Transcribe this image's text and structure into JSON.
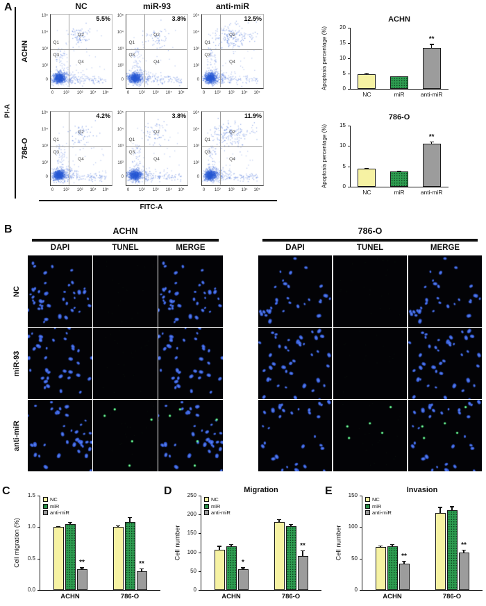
{
  "colors": {
    "nc": "#F6F2A3",
    "mir": "#2E9C50",
    "anti": "#9C9C9C",
    "flow_dot": "#2A5BD7"
  },
  "legend": [
    "NC",
    "miR",
    "anti-miR"
  ],
  "panel_a": {
    "label": "A",
    "col_headers": [
      "NC",
      "miR-93",
      "anti-miR"
    ],
    "row_labels": [
      "ACHN",
      "786-O"
    ],
    "x_axis_label": "FITC-A",
    "y_axis_label": "PI-A",
    "y_ticks": [
      "10⁵",
      "10⁴",
      "10³",
      "10²",
      "0"
    ],
    "x_ticks": [
      "0",
      "10²",
      "10³",
      "10⁴",
      "10⁵"
    ],
    "quadrants": [
      "Q1",
      "Q2",
      "Q3",
      "Q4"
    ],
    "plots": [
      {
        "row": "ACHN",
        "col": "NC",
        "percent": "5.5%"
      },
      {
        "row": "ACHN",
        "col": "miR-93",
        "percent": "3.8%"
      },
      {
        "row": "ACHN",
        "col": "anti-miR",
        "percent": "12.5%"
      },
      {
        "row": "786-O",
        "col": "NC",
        "percent": "4.2%"
      },
      {
        "row": "786-O",
        "col": "miR-93",
        "percent": "3.8%"
      },
      {
        "row": "786-O",
        "col": "anti-miR",
        "percent": "11.9%"
      }
    ]
  },
  "panel_b": {
    "label": "B",
    "groups": [
      "ACHN",
      "786-O"
    ],
    "col_headers": [
      "DAPI",
      "TUNEL",
      "MERGE"
    ],
    "row_labels": [
      "NC",
      "miR-93",
      "anti-miR"
    ]
  },
  "panel_c": {
    "label": "C"
  },
  "panel_d": {
    "label": "D"
  },
  "panel_e": {
    "label": "E"
  },
  "chart_data": [
    {
      "id": "apoptosis_achn",
      "type": "bar",
      "title": "ACHN",
      "ylabel": "Apoptosis percentage (%)",
      "ylim": [
        0,
        20
      ],
      "yticks": [
        0,
        5,
        10,
        15,
        20
      ],
      "categories": [
        "NC",
        "miR",
        "anti-miR"
      ],
      "values": [
        4.8,
        4.0,
        13.5
      ],
      "errors": [
        0.4,
        0.15,
        1.2
      ],
      "sig": [
        "",
        "",
        "**"
      ]
    },
    {
      "id": "apoptosis_786o",
      "type": "bar",
      "title": "786-O",
      "ylabel": "Apoptosis percentage (%)",
      "ylim": [
        0,
        15
      ],
      "yticks": [
        0,
        5,
        10,
        15
      ],
      "categories": [
        "NC",
        "miR",
        "anti-miR"
      ],
      "values": [
        4.4,
        3.8,
        10.6
      ],
      "errors": [
        0.25,
        0.1,
        0.5
      ],
      "sig": [
        "",
        "",
        "**"
      ]
    },
    {
      "id": "migration_pct",
      "type": "grouped_bar",
      "title": "",
      "ylabel": "Cell migration (%)",
      "ylim": [
        0,
        1.5
      ],
      "yticks": [
        0,
        0.5,
        1.0,
        1.5
      ],
      "ytick_labels": [
        "0.0",
        "0.5",
        "1.0",
        "1.5"
      ],
      "categories": [
        "ACHN",
        "786-O"
      ],
      "series": [
        {
          "name": "NC",
          "values": [
            1.0,
            1.0
          ],
          "errors": [
            0.02,
            0.03
          ],
          "sig": [
            "",
            ""
          ]
        },
        {
          "name": "miR",
          "values": [
            1.05,
            1.08
          ],
          "errors": [
            0.03,
            0.08
          ],
          "sig": [
            "",
            ""
          ]
        },
        {
          "name": "anti-miR",
          "values": [
            0.33,
            0.3
          ],
          "errors": [
            0.03,
            0.04
          ],
          "sig": [
            "**",
            "**"
          ]
        }
      ]
    },
    {
      "id": "migration_count",
      "type": "grouped_bar",
      "title": "Migration",
      "ylabel": "Cell number",
      "ylim": [
        0,
        250
      ],
      "yticks": [
        0,
        50,
        100,
        150,
        200,
        250
      ],
      "categories": [
        "ACHN",
        "786-O"
      ],
      "series": [
        {
          "name": "NC",
          "values": [
            107,
            180
          ],
          "errors": [
            10,
            8
          ],
          "sig": [
            "",
            ""
          ]
        },
        {
          "name": "miR",
          "values": [
            116,
            170
          ],
          "errors": [
            6,
            5
          ],
          "sig": [
            "",
            ""
          ]
        },
        {
          "name": "anti-miR",
          "values": [
            55,
            90
          ],
          "errors": [
            5,
            15
          ],
          "sig": [
            "*",
            "**"
          ]
        }
      ]
    },
    {
      "id": "invasion_count",
      "type": "grouped_bar",
      "title": "Invasion",
      "ylabel": "Cell number",
      "ylim": [
        0,
        150
      ],
      "yticks": [
        0,
        50,
        100,
        150
      ],
      "categories": [
        "ACHN",
        "786-O"
      ],
      "series": [
        {
          "name": "NC",
          "values": [
            68,
            122
          ],
          "errors": [
            3,
            10
          ],
          "sig": [
            "",
            ""
          ]
        },
        {
          "name": "miR",
          "values": [
            70,
            127
          ],
          "errors": [
            3,
            6
          ],
          "sig": [
            "",
            ""
          ]
        },
        {
          "name": "anti-miR",
          "values": [
            42,
            60
          ],
          "errors": [
            4,
            4
          ],
          "sig": [
            "**",
            "**"
          ]
        }
      ]
    }
  ]
}
